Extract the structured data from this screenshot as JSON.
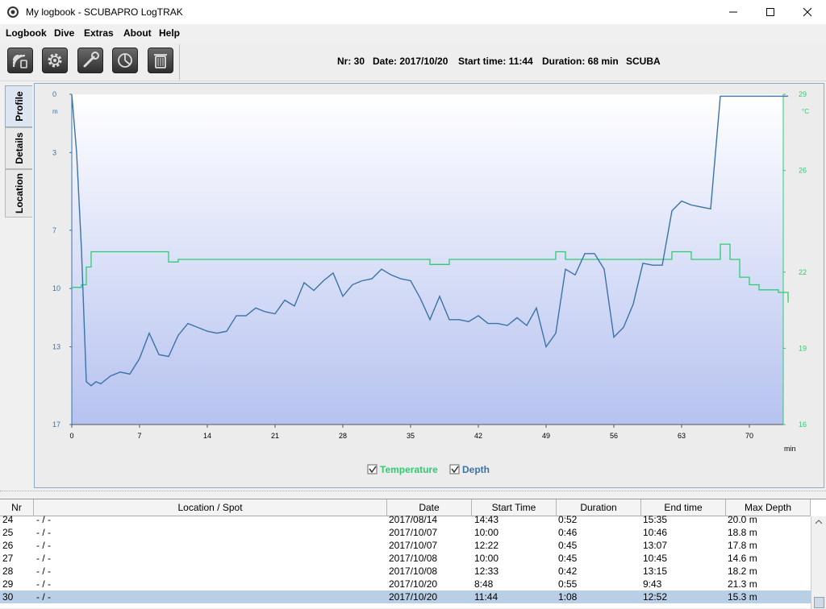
{
  "window": {
    "title": "My logbook - SCUBAPRO LogTRAK",
    "app_icon": "logtrak-app-icon",
    "controls": [
      "minimize-icon",
      "maximize-icon",
      "close-icon"
    ]
  },
  "menu": [
    "Logbook",
    "Dive",
    "Extras",
    "About",
    "Help"
  ],
  "toolbar": {
    "buttons": [
      "download-dives-icon",
      "settings-gear-icon",
      "tools-wrench-icon",
      "statistics-chart-icon",
      "trash-icon"
    ],
    "dive_info": {
      "nr": "Nr: 30",
      "date": "Date: 2017/10/20",
      "start": "Start time: 11:44",
      "duration": "Duration: 68 min",
      "type": "SCUBA"
    }
  },
  "side_tabs": [
    "Profile",
    "Details",
    "Location"
  ],
  "colors": {
    "depth": "#3b73a8",
    "temperature": "#2ecc71",
    "chart_bg_top": "#ffffff",
    "chart_bg_bottom": "#b6c2f0",
    "selected_row": "#b8cfe5"
  },
  "chart_data": {
    "type": "line",
    "x": [
      0,
      0.5,
      1,
      1.5,
      2,
      2.5,
      3,
      4,
      5,
      6,
      7,
      8,
      9,
      10,
      11,
      12,
      13,
      14,
      15,
      16,
      17,
      18,
      19,
      20,
      21,
      22,
      23,
      24,
      25,
      26,
      27,
      28,
      29,
      30,
      31,
      32,
      33,
      34,
      35,
      36,
      37,
      38,
      39,
      40,
      41,
      42,
      43,
      44,
      45,
      46,
      47,
      48,
      49,
      50,
      51,
      52,
      53,
      54,
      55,
      56,
      57,
      58,
      59,
      60,
      61,
      62,
      63,
      64,
      65,
      66,
      67,
      68,
      69,
      70,
      71,
      72,
      73,
      74
    ],
    "x_ticks": [
      0,
      7,
      14,
      21,
      28,
      35,
      42,
      49,
      56,
      63,
      70
    ],
    "xlabel": "min",
    "xlim": [
      0,
      73.5
    ],
    "series": [
      {
        "name": "Depth",
        "axis": "left",
        "unit": "m",
        "ylim": [
          0,
          17
        ],
        "y_ticks": [
          0,
          3,
          7,
          10,
          13,
          17
        ],
        "inverted": true,
        "values": [
          0,
          3.0,
          8.0,
          14.8,
          15.0,
          14.8,
          14.9,
          14.5,
          14.3,
          14.4,
          13.6,
          12.3,
          13.4,
          13.5,
          12.4,
          11.8,
          12.0,
          12.2,
          12.3,
          12.2,
          11.4,
          11.4,
          11.0,
          11.2,
          11.3,
          10.6,
          10.9,
          9.7,
          10.1,
          9.6,
          9.2,
          10.4,
          9.8,
          9.6,
          9.5,
          9.0,
          9.3,
          9.5,
          9.6,
          10.5,
          11.6,
          10.4,
          11.6,
          11.6,
          11.7,
          11.4,
          11.8,
          11.8,
          11.9,
          11.5,
          11.9,
          11.0,
          13.0,
          12.3,
          9.0,
          9.3,
          8.2,
          8.2,
          9.0,
          12.5,
          12.0,
          10.8,
          8.7,
          8.8,
          8.8,
          6.0,
          5.5,
          5.7,
          5.8,
          5.9,
          0.1,
          0.1,
          0.1,
          0.1,
          0.1,
          0.1,
          0.1,
          0.1
        ]
      },
      {
        "name": "Temperature",
        "axis": "right",
        "unit": "°C",
        "ylim": [
          16,
          29
        ],
        "y_ticks": [
          16,
          19,
          22,
          26,
          29
        ],
        "values": [
          21.4,
          21.4,
          21.5,
          22.2,
          22.8,
          22.8,
          22.8,
          22.8,
          22.8,
          22.8,
          22.8,
          22.8,
          22.8,
          22.4,
          22.5,
          22.5,
          22.5,
          22.5,
          22.5,
          22.5,
          22.5,
          22.5,
          22.5,
          22.5,
          22.5,
          22.5,
          22.5,
          22.5,
          22.5,
          22.5,
          22.5,
          22.5,
          22.5,
          22.5,
          22.5,
          22.5,
          22.5,
          22.5,
          22.5,
          22.5,
          22.3,
          22.3,
          22.5,
          22.5,
          22.5,
          22.5,
          22.5,
          22.5,
          22.5,
          22.5,
          22.5,
          22.5,
          22.5,
          22.8,
          22.5,
          22.5,
          22.5,
          22.5,
          22.5,
          22.5,
          22.5,
          22.5,
          22.5,
          22.5,
          22.5,
          22.8,
          22.8,
          22.5,
          22.5,
          22.5,
          23.1,
          22.5,
          21.8,
          21.5,
          21.3,
          21.3,
          21.2,
          20.8
        ]
      }
    ],
    "legend": [
      "Temperature",
      "Depth"
    ],
    "legend_position": "bottom-center",
    "grid": false
  },
  "table": {
    "columns": [
      "Nr",
      "Location / Spot",
      "Date",
      "Start Time",
      "Duration",
      "End time",
      "Max Depth"
    ],
    "rows": [
      [
        "24",
        "- / -",
        "2017/08/14",
        "14:43",
        "0:52",
        "15:35",
        "20.0 m"
      ],
      [
        "25",
        "- / -",
        "2017/10/07",
        "10:00",
        "0:46",
        "10:46",
        "18.8 m"
      ],
      [
        "26",
        "- / -",
        "2017/10/07",
        "12:22",
        "0:45",
        "13:07",
        "17.8 m"
      ],
      [
        "27",
        "- / -",
        "2017/10/08",
        "10:00",
        "0:45",
        "10:45",
        "14.6 m"
      ],
      [
        "28",
        "- / -",
        "2017/10/08",
        "12:33",
        "0:42",
        "13:15",
        "18.2 m"
      ],
      [
        "29",
        "- / -",
        "2017/10/20",
        "8:48",
        "0:55",
        "9:43",
        "21.3 m"
      ],
      [
        "30",
        "- / -",
        "2017/10/20",
        "11:44",
        "1:08",
        "12:52",
        "15.3 m"
      ]
    ],
    "selected_row": 6
  }
}
